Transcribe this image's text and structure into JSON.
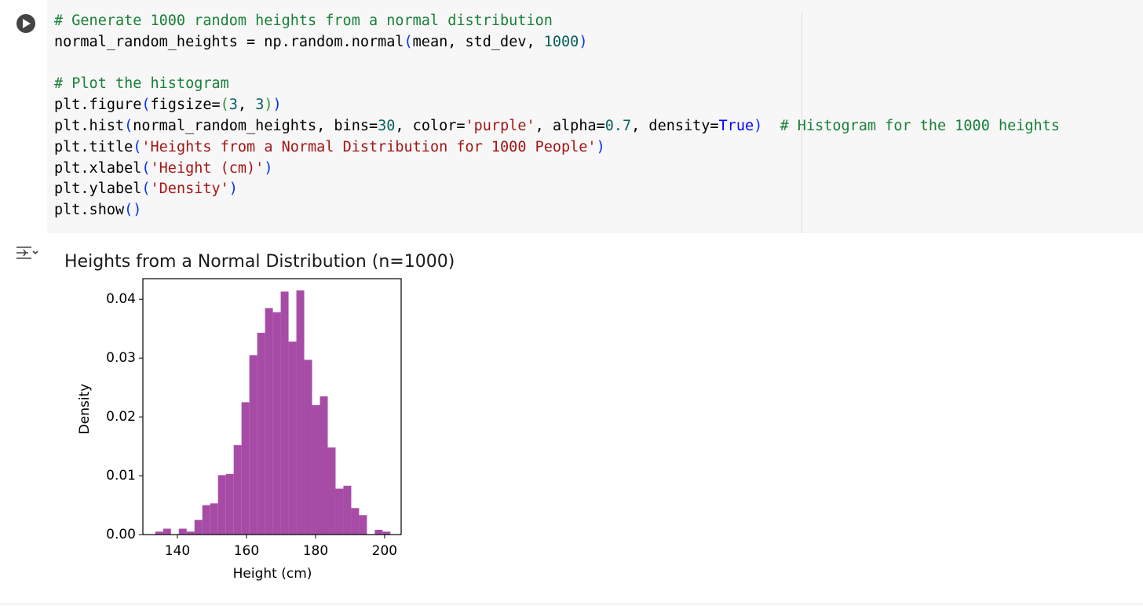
{
  "code_cell": {
    "lines": [
      [
        {
          "text": "# Generate 1000 random heights from a normal distribution",
          "color": "#188038"
        }
      ],
      [
        {
          "text": "normal_random_heights = np.random.normal",
          "color": "#000000"
        },
        {
          "text": "(",
          "color": "#0431fa"
        },
        {
          "text": "mean, std_dev, ",
          "color": "#000000"
        },
        {
          "text": "1000",
          "color": "#09605c"
        },
        {
          "text": ")",
          "color": "#0431fa"
        }
      ],
      [],
      [
        {
          "text": "# Plot the histogram",
          "color": "#188038"
        }
      ],
      [
        {
          "text": "plt.figure",
          "color": "#000000"
        },
        {
          "text": "(",
          "color": "#0431fa"
        },
        {
          "text": "figsize=",
          "color": "#000000"
        },
        {
          "text": "(",
          "color": "#319331"
        },
        {
          "text": "3",
          "color": "#09605c"
        },
        {
          "text": ", ",
          "color": "#000000"
        },
        {
          "text": "3",
          "color": "#09605c"
        },
        {
          "text": ")",
          "color": "#319331"
        },
        {
          "text": ")",
          "color": "#0431fa"
        }
      ],
      [
        {
          "text": "plt.hist",
          "color": "#000000"
        },
        {
          "text": "(",
          "color": "#0431fa"
        },
        {
          "text": "normal_random_heights, bins=",
          "color": "#000000"
        },
        {
          "text": "30",
          "color": "#09605c"
        },
        {
          "text": ", color=",
          "color": "#000000"
        },
        {
          "text": "'purple'",
          "color": "#a31515"
        },
        {
          "text": ", alpha=",
          "color": "#000000"
        },
        {
          "text": "0.7",
          "color": "#09605c"
        },
        {
          "text": ", density=",
          "color": "#000000"
        },
        {
          "text": "True",
          "color": "#0000ff"
        },
        {
          "text": ")",
          "color": "#0431fa"
        },
        {
          "text": "  # Histogram for the 1000 heights",
          "color": "#188038"
        }
      ],
      [
        {
          "text": "plt.title",
          "color": "#000000"
        },
        {
          "text": "(",
          "color": "#0431fa"
        },
        {
          "text": "'Heights from a Normal Distribution for 1000 People'",
          "color": "#a31515"
        },
        {
          "text": ")",
          "color": "#0431fa"
        }
      ],
      [
        {
          "text": "plt.xlabel",
          "color": "#000000"
        },
        {
          "text": "(",
          "color": "#0431fa"
        },
        {
          "text": "'Height (cm)'",
          "color": "#a31515"
        },
        {
          "text": ")",
          "color": "#0431fa"
        }
      ],
      [
        {
          "text": "plt.ylabel",
          "color": "#000000"
        },
        {
          "text": "(",
          "color": "#0431fa"
        },
        {
          "text": "'Density'",
          "color": "#a31515"
        },
        {
          "text": ")",
          "color": "#0431fa"
        }
      ],
      [
        {
          "text": "plt.show",
          "color": "#000000"
        },
        {
          "text": "()",
          "color": "#0431fa"
        }
      ]
    ]
  },
  "chart_data": {
    "type": "histogram",
    "title": "Heights from a Normal Distribution (n=1000)",
    "x_label": "Height (cm)",
    "y_label": "Density",
    "bins": [
      133.6,
      135.87,
      138.14,
      140.41,
      142.68,
      144.95,
      147.22,
      149.49,
      151.76,
      154.03,
      156.3,
      158.57,
      160.84,
      163.11,
      165.38,
      167.65,
      169.92,
      172.19,
      174.46,
      176.73,
      179.0,
      181.27,
      183.54,
      185.81,
      188.08,
      190.35,
      192.62,
      194.89,
      197.16,
      199.43,
      201.7
    ],
    "values": [
      0.0005,
      0.001,
      0,
      0.001,
      0.0005,
      0.0025,
      0.005,
      0.0053,
      0.0101,
      0.0103,
      0.0152,
      0.0225,
      0.0305,
      0.0343,
      0.0385,
      0.0378,
      0.0413,
      0.0328,
      0.0415,
      0.0297,
      0.022,
      0.0235,
      0.0148,
      0.0078,
      0.0083,
      0.0045,
      0.0033,
      0,
      0.0008,
      0.0005
    ],
    "color": "#a64ca6",
    "xlim": [
      130,
      204.8
    ],
    "ylim": [
      0,
      0.0435
    ],
    "xticks": [
      140,
      160,
      180,
      200
    ],
    "yticks": [
      {
        "value": 0,
        "label": "0.00"
      },
      0.01,
      0.02,
      0.03,
      0.04
    ]
  }
}
